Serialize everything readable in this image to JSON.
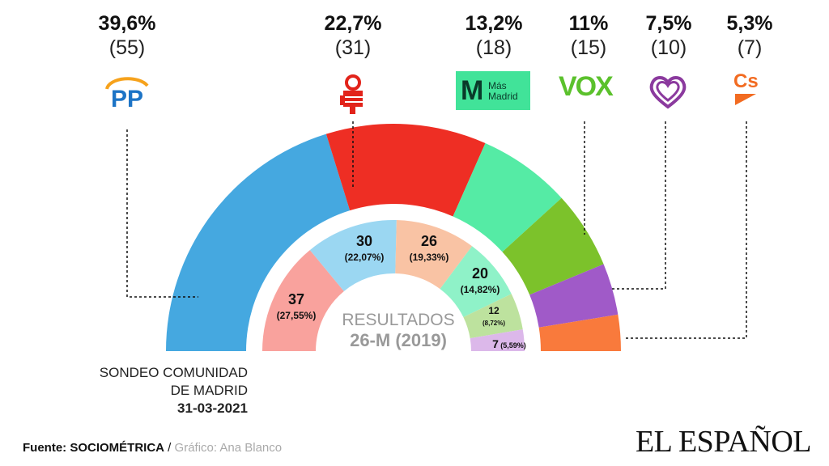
{
  "chart_data": {
    "type": "hemicycle",
    "outer": {
      "label_lines": [
        "SONDEO COMUNIDAD",
        "DE MADRID"
      ],
      "date": "31-03-2021",
      "parties": [
        {
          "name": "PP",
          "percent_label": "39,6%",
          "seats": 55,
          "seats_label": "(55)",
          "color": "#45a8e0"
        },
        {
          "name": "PSOE",
          "percent_label": "22,7%",
          "seats": 31,
          "seats_label": "(31)",
          "color": "#ee2e24"
        },
        {
          "name": "Más Madrid",
          "percent_label": "13,2%",
          "seats": 18,
          "seats_label": "(18)",
          "color": "#55eba5"
        },
        {
          "name": "VOX",
          "percent_label": "11%",
          "seats": 15,
          "seats_label": "(15)",
          "color": "#7cc22b"
        },
        {
          "name": "Podemos",
          "percent_label": "7,5%",
          "seats": 10,
          "seats_label": "(10)",
          "color": "#a05ac8"
        },
        {
          "name": "Cs",
          "percent_label": "5,3%",
          "seats": 7,
          "seats_label": "(7)",
          "color": "#f97a3c"
        }
      ]
    },
    "inner": {
      "title": "RESULTADOS",
      "subtitle": "26-M (2019)",
      "parties": [
        {
          "name": "PSOE",
          "seats": 37,
          "percent_label": "(27,55%)",
          "color": "#f9a29d"
        },
        {
          "name": "PP",
          "seats": 30,
          "percent_label": "(22,07%)",
          "color": "#9bd7f2"
        },
        {
          "name": "Cs",
          "seats": 26,
          "percent_label": "(19,33%)",
          "color": "#f9c3a4"
        },
        {
          "name": "Más Madrid",
          "seats": 20,
          "percent_label": "(14,82%)",
          "color": "#8ff2c8"
        },
        {
          "name": "VOX",
          "seats": 12,
          "percent_label": "(8,72%)",
          "color": "#bde29e"
        },
        {
          "name": "Podemos",
          "seats": 7,
          "percent_label": "(5,59%)",
          "color": "#dcb8ea"
        }
      ]
    }
  },
  "logos": {
    "pp": "PP",
    "mas_madrid": [
      "Más",
      "Madrid"
    ],
    "vox": "VOX",
    "cs": "Cs"
  },
  "footer": {
    "source_prefix": "Fuente: ",
    "source": "SOCIOMÉTRICA",
    "separator": " / ",
    "credit": "Gráfico: Ana Blanco",
    "brand": "EL ESPAÑOL"
  }
}
